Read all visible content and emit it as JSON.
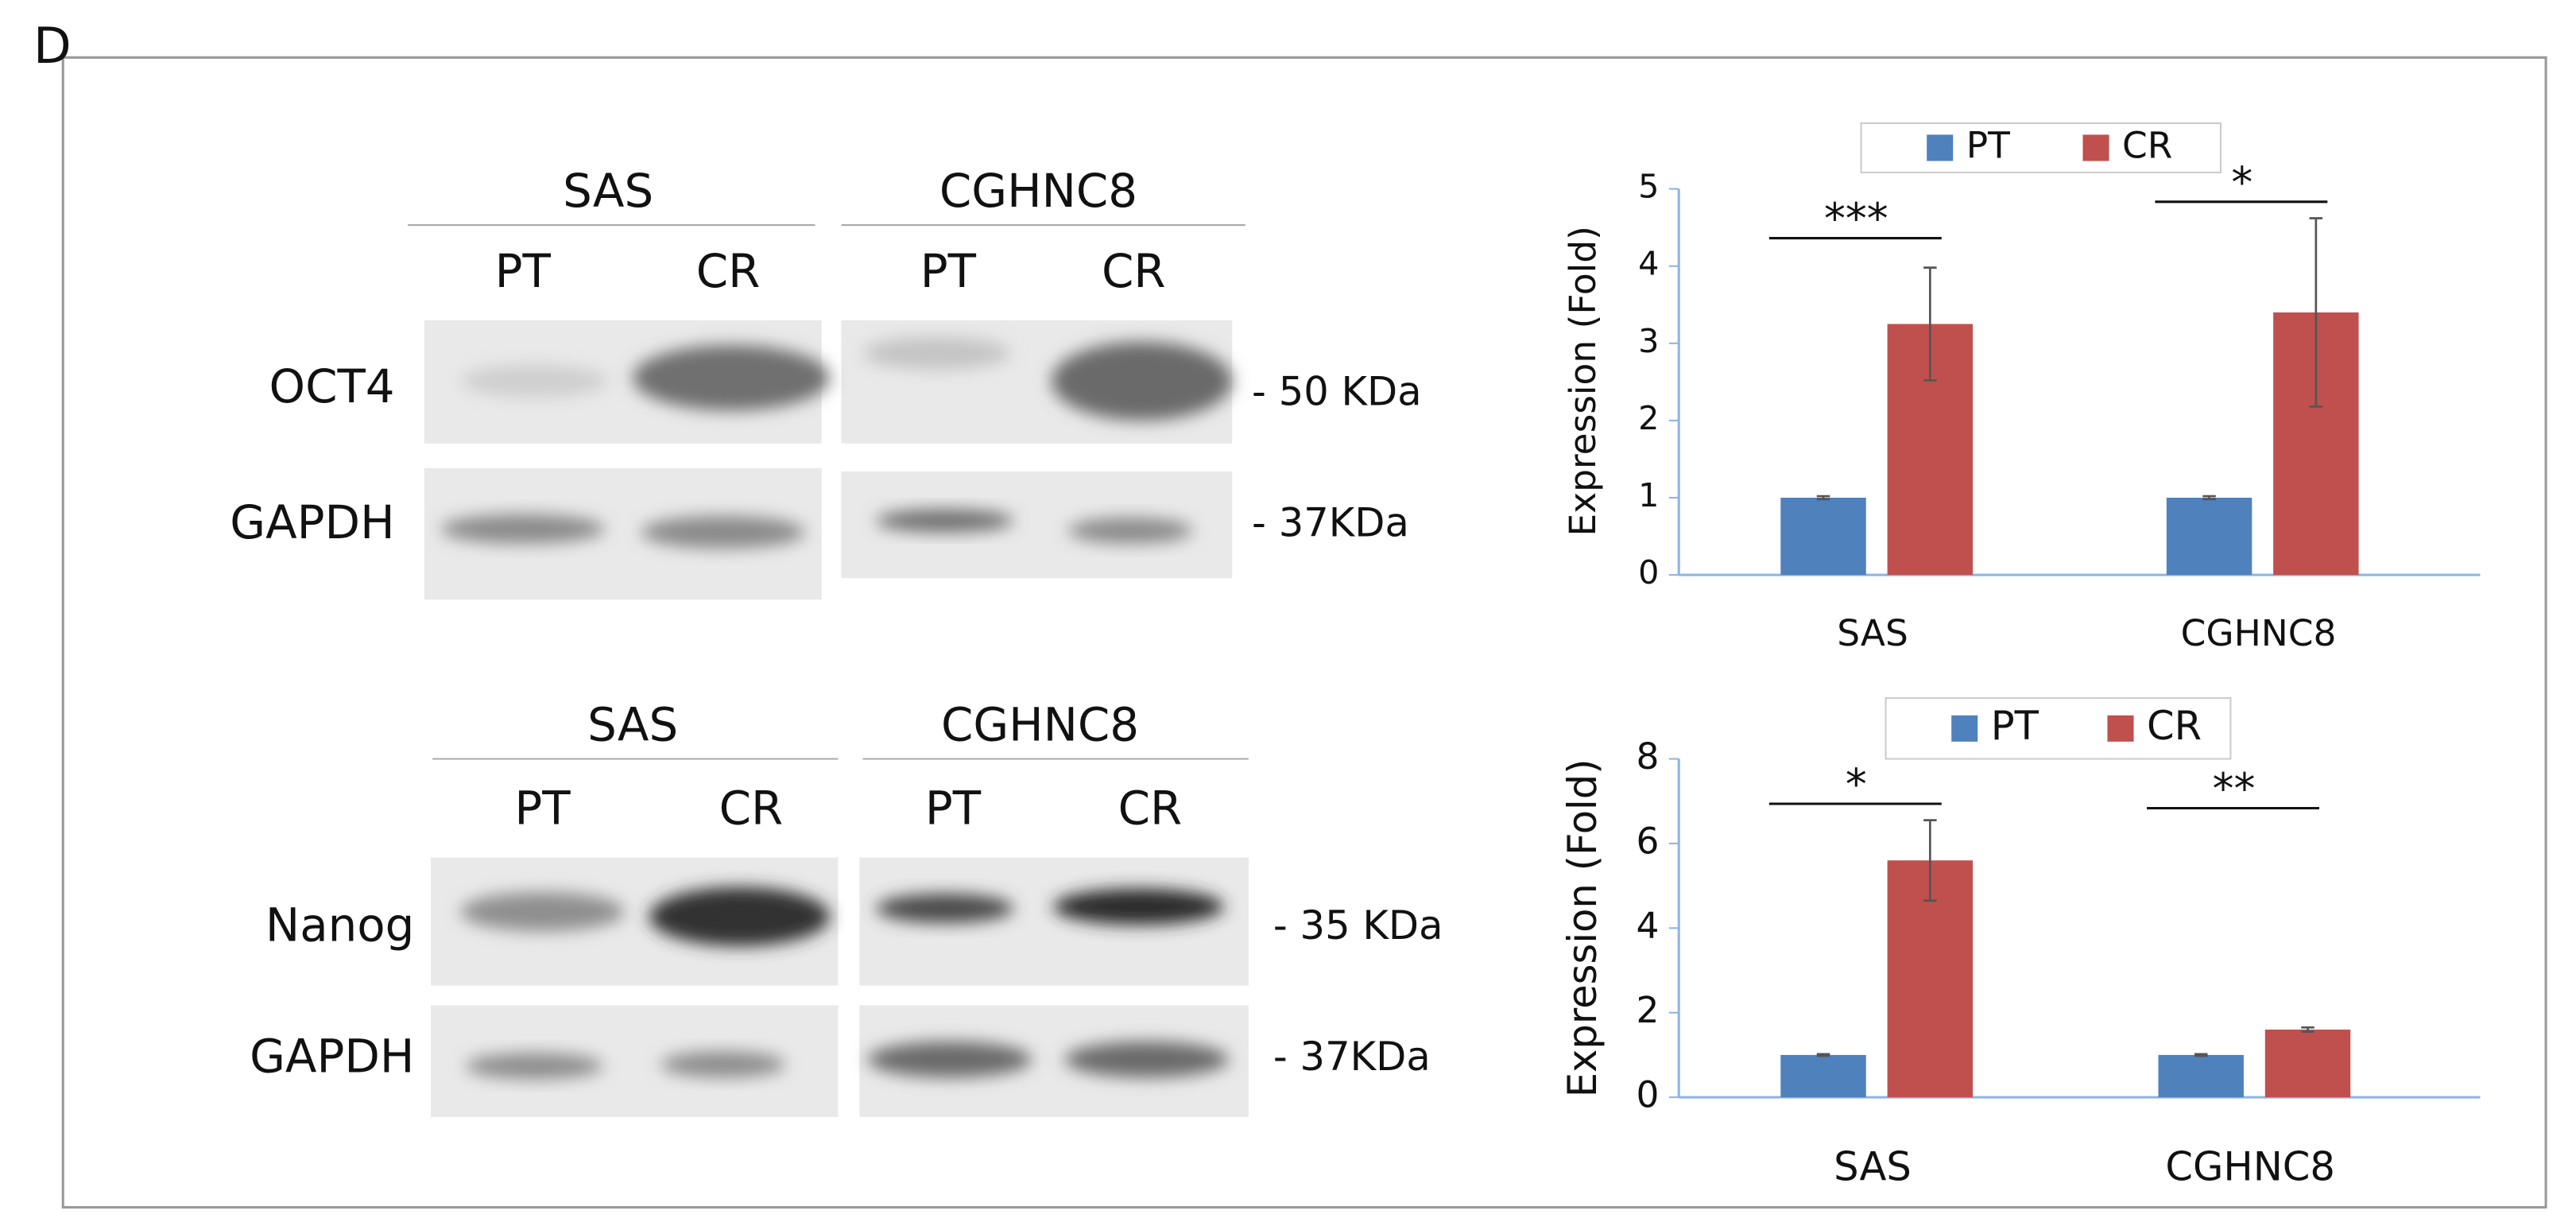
{
  "panel_label": "D",
  "blots": [
    {
      "cell_lines": [
        "SAS",
        "CGHNC8"
      ],
      "lanes": [
        "PT",
        "CR",
        "PT",
        "CR"
      ],
      "proteins": [
        {
          "name": "OCT4",
          "size": "- 50 KDa"
        },
        {
          "name": "GAPDH",
          "size": "- 37KDa"
        }
      ]
    },
    {
      "cell_lines": [
        "SAS",
        "CGHNC8"
      ],
      "lanes": [
        "PT",
        "CR",
        "PT",
        "CR"
      ],
      "proteins": [
        {
          "name": "Nanog",
          "size": "- 35 KDa"
        },
        {
          "name": "GAPDH",
          "size": "- 37KDa"
        }
      ]
    }
  ],
  "chart_data": [
    {
      "type": "bar",
      "y_label": "Expression (Fold)",
      "categories": [
        "SAS",
        "CGHNC8"
      ],
      "series": [
        {
          "name": "PT",
          "color": "#4f81bd",
          "values": [
            1,
            1
          ],
          "errors": [
            0.02,
            0.02
          ]
        },
        {
          "name": "CR",
          "color": "#c0504d",
          "values": [
            3.25,
            3.4
          ],
          "errors": [
            0.73,
            1.22
          ]
        }
      ],
      "significance": [
        "***",
        "*"
      ],
      "ylim": [
        0,
        5
      ],
      "yticks": [
        0,
        1,
        2,
        3,
        4,
        5
      ],
      "legend": "top"
    },
    {
      "type": "bar",
      "y_label": "Expression (Fold)",
      "categories": [
        "SAS",
        "CGHNC8"
      ],
      "series": [
        {
          "name": "PT",
          "color": "#4f81bd",
          "values": [
            1,
            1
          ],
          "errors": [
            0.02,
            0.02
          ]
        },
        {
          "name": "CR",
          "color": "#c0504d",
          "values": [
            5.6,
            1.6
          ],
          "errors": [
            0.95,
            0.05
          ]
        }
      ],
      "significance": [
        "*",
        "**"
      ],
      "ylim": [
        0,
        8
      ],
      "yticks": [
        0,
        2,
        4,
        6,
        8
      ],
      "legend": "top"
    }
  ]
}
